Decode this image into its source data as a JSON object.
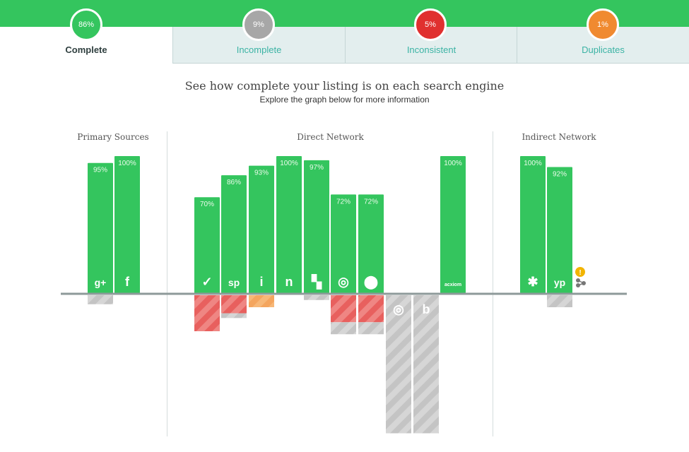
{
  "tabs": [
    {
      "pct": "86%",
      "label": "Complete",
      "color": "#34c55e",
      "active": true
    },
    {
      "pct": "9%",
      "label": "Incomplete",
      "color": "#a7a7a7",
      "active": false
    },
    {
      "pct": "5%",
      "label": "Inconsistent",
      "color": "#e0302f",
      "active": false
    },
    {
      "pct": "1%",
      "label": "Duplicates",
      "color": "#f08a30",
      "active": false
    }
  ],
  "header": {
    "title": "See how complete your listing is on each search engine",
    "subtitle": "Explore the graph below for more information"
  },
  "sections": [
    "Primary Sources",
    "Direct Network",
    "Indirect Network"
  ],
  "colors": {
    "complete": "#34c55e",
    "incomplete": "#c4c4c4",
    "inconsistent": "#e8605e",
    "duplicates": "#f4a55e",
    "baseline": "#8e9a9a"
  },
  "chart_data": {
    "type": "bar",
    "categories": [
      "google-plus",
      "facebook",
      "foursquare",
      "superpages",
      "citysearch",
      "neustar",
      "infogroup",
      "localeze",
      "mapquest",
      "acxiom-bar-gap-1",
      "bing",
      "acxiom",
      "yelp",
      "yellowpages"
    ],
    "series": [
      {
        "key": "complete",
        "values": [
          95,
          100,
          70,
          86,
          93,
          100,
          97,
          72,
          72,
          0,
          0,
          100,
          100,
          92
        ]
      },
      {
        "key": "inconsistent",
        "values": [
          0,
          0,
          60,
          30,
          0,
          0,
          0,
          45,
          45,
          0,
          0,
          0,
          0,
          0
        ]
      },
      {
        "key": "incomplete",
        "values": [
          15,
          0,
          0,
          8,
          0,
          0,
          8,
          20,
          20,
          230,
          230,
          0,
          0,
          20
        ]
      },
      {
        "key": "duplicates",
        "values": [
          0,
          0,
          0,
          0,
          20,
          0,
          0,
          0,
          0,
          0,
          0,
          0,
          0,
          0
        ]
      }
    ],
    "labels": [
      "95%",
      "100%",
      "70%",
      "86%",
      "93%",
      "100%",
      "97%",
      "72%",
      "72%",
      "",
      "",
      "100%",
      "100%",
      "92%"
    ],
    "icons": [
      "google-plus-icon",
      "facebook-icon",
      "foursquare-icon",
      "superpages-icon",
      "citysearch-icon",
      "neustar-icon",
      "infogroup-icon",
      "localeze-icon",
      "mapquest-icon",
      "yahoo-icon",
      "bing-icon",
      "acxiom-icon",
      "yelp-icon",
      "yellowpages-icon"
    ],
    "glyphs": [
      "g+",
      "f",
      "✓",
      "sp",
      "i",
      "n",
      "▚",
      "◎",
      "⬤",
      "◎",
      "b",
      "acxiom",
      "✱",
      "yp"
    ],
    "group": [
      0,
      0,
      1,
      1,
      1,
      1,
      1,
      1,
      1,
      1,
      1,
      1,
      2,
      2
    ]
  },
  "warning": {
    "label": "!"
  }
}
